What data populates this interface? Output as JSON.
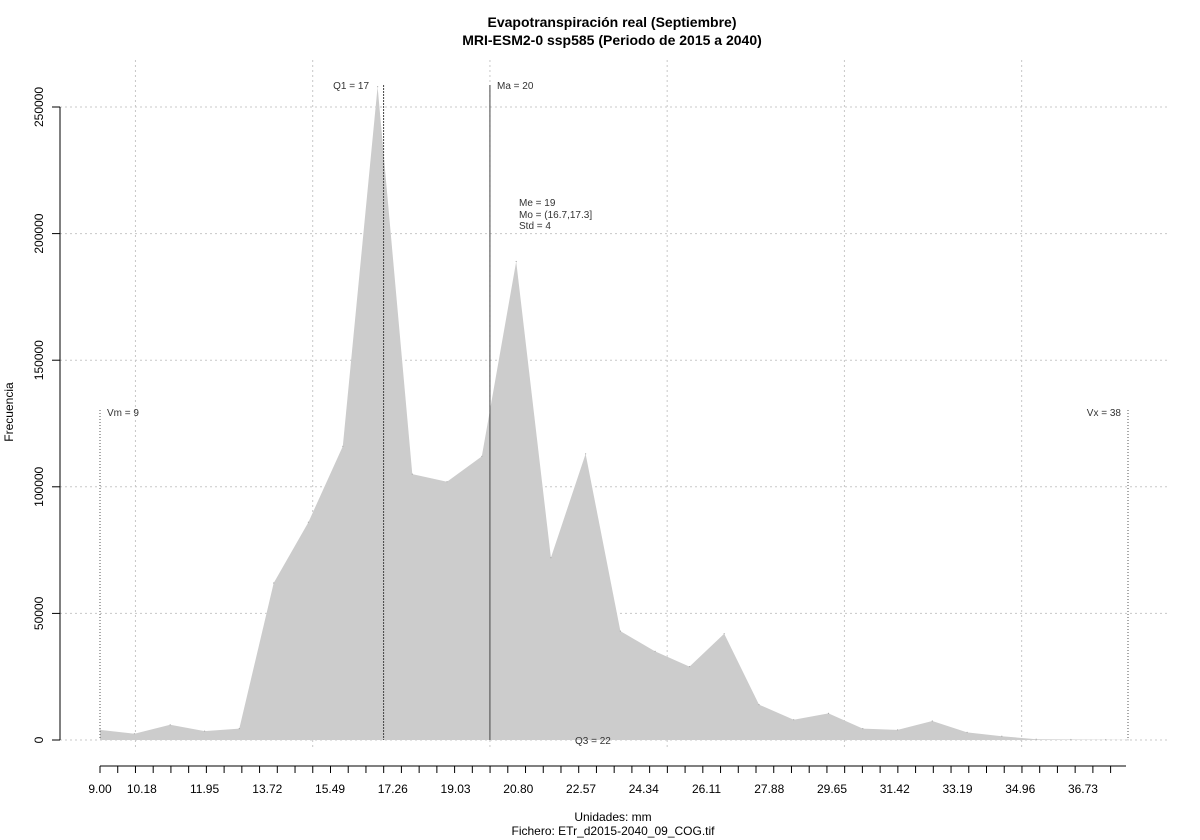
{
  "chart_data": {
    "type": "area",
    "title": "Evapotranspiración real (Septiembre)",
    "subtitle": "MRI-ESM2-0 ssp585 (Periodo de 2015 a 2040)",
    "xlabel": "Unidades: mm",
    "ylabel": "Frecuencia",
    "caption": "Fichero: ETr_d2015-2040_09_COG.tif",
    "xlim": [
      9.0,
      38.0
    ],
    "ylim": [
      0,
      250000
    ],
    "grid": true,
    "fill_color": "#cccccc",
    "x_ticks": [
      "9.00",
      "10.18",
      "11.95",
      "13.72",
      "15.49",
      "17.26",
      "19.03",
      "20.80",
      "22.57",
      "24.34",
      "26.11",
      "27.88",
      "29.65",
      "31.42",
      "33.19",
      "34.96",
      "36.73"
    ],
    "y_ticks": [
      "0",
      "50000",
      "100000",
      "150000",
      "200000",
      "250000"
    ],
    "x": [
      9.0,
      9.97,
      10.98,
      11.95,
      12.93,
      13.9,
      14.88,
      15.85,
      16.83,
      17.81,
      18.79,
      19.77,
      20.74,
      21.72,
      22.7,
      23.68,
      24.66,
      25.63,
      26.61,
      27.59,
      28.57,
      29.55,
      30.52,
      31.5,
      32.48,
      33.46,
      34.44,
      35.41,
      36.39,
      37.37,
      38.0
    ],
    "values": [
      4000,
      2500,
      6000,
      3500,
      4500,
      62000,
      86000,
      116000,
      258000,
      105000,
      102000,
      112000,
      189000,
      72000,
      113000,
      43000,
      35000,
      29000,
      42000,
      14000,
      8000,
      10500,
      4500,
      4000,
      7500,
      3000,
      1500,
      300,
      200,
      100,
      50
    ],
    "annotations": {
      "vm": "Vm = 9",
      "vx": "Vx = 38",
      "q1": "Q1 = 17",
      "ma": "Ma = 20",
      "q3": "Q3 = 22",
      "me": "Me = 19",
      "mo": "Mo = (16.7,17.3]",
      "std": "Std = 4"
    },
    "markers": {
      "vm": 9,
      "vx": 38,
      "q1": 17,
      "ma": 20,
      "q3": 22
    }
  }
}
